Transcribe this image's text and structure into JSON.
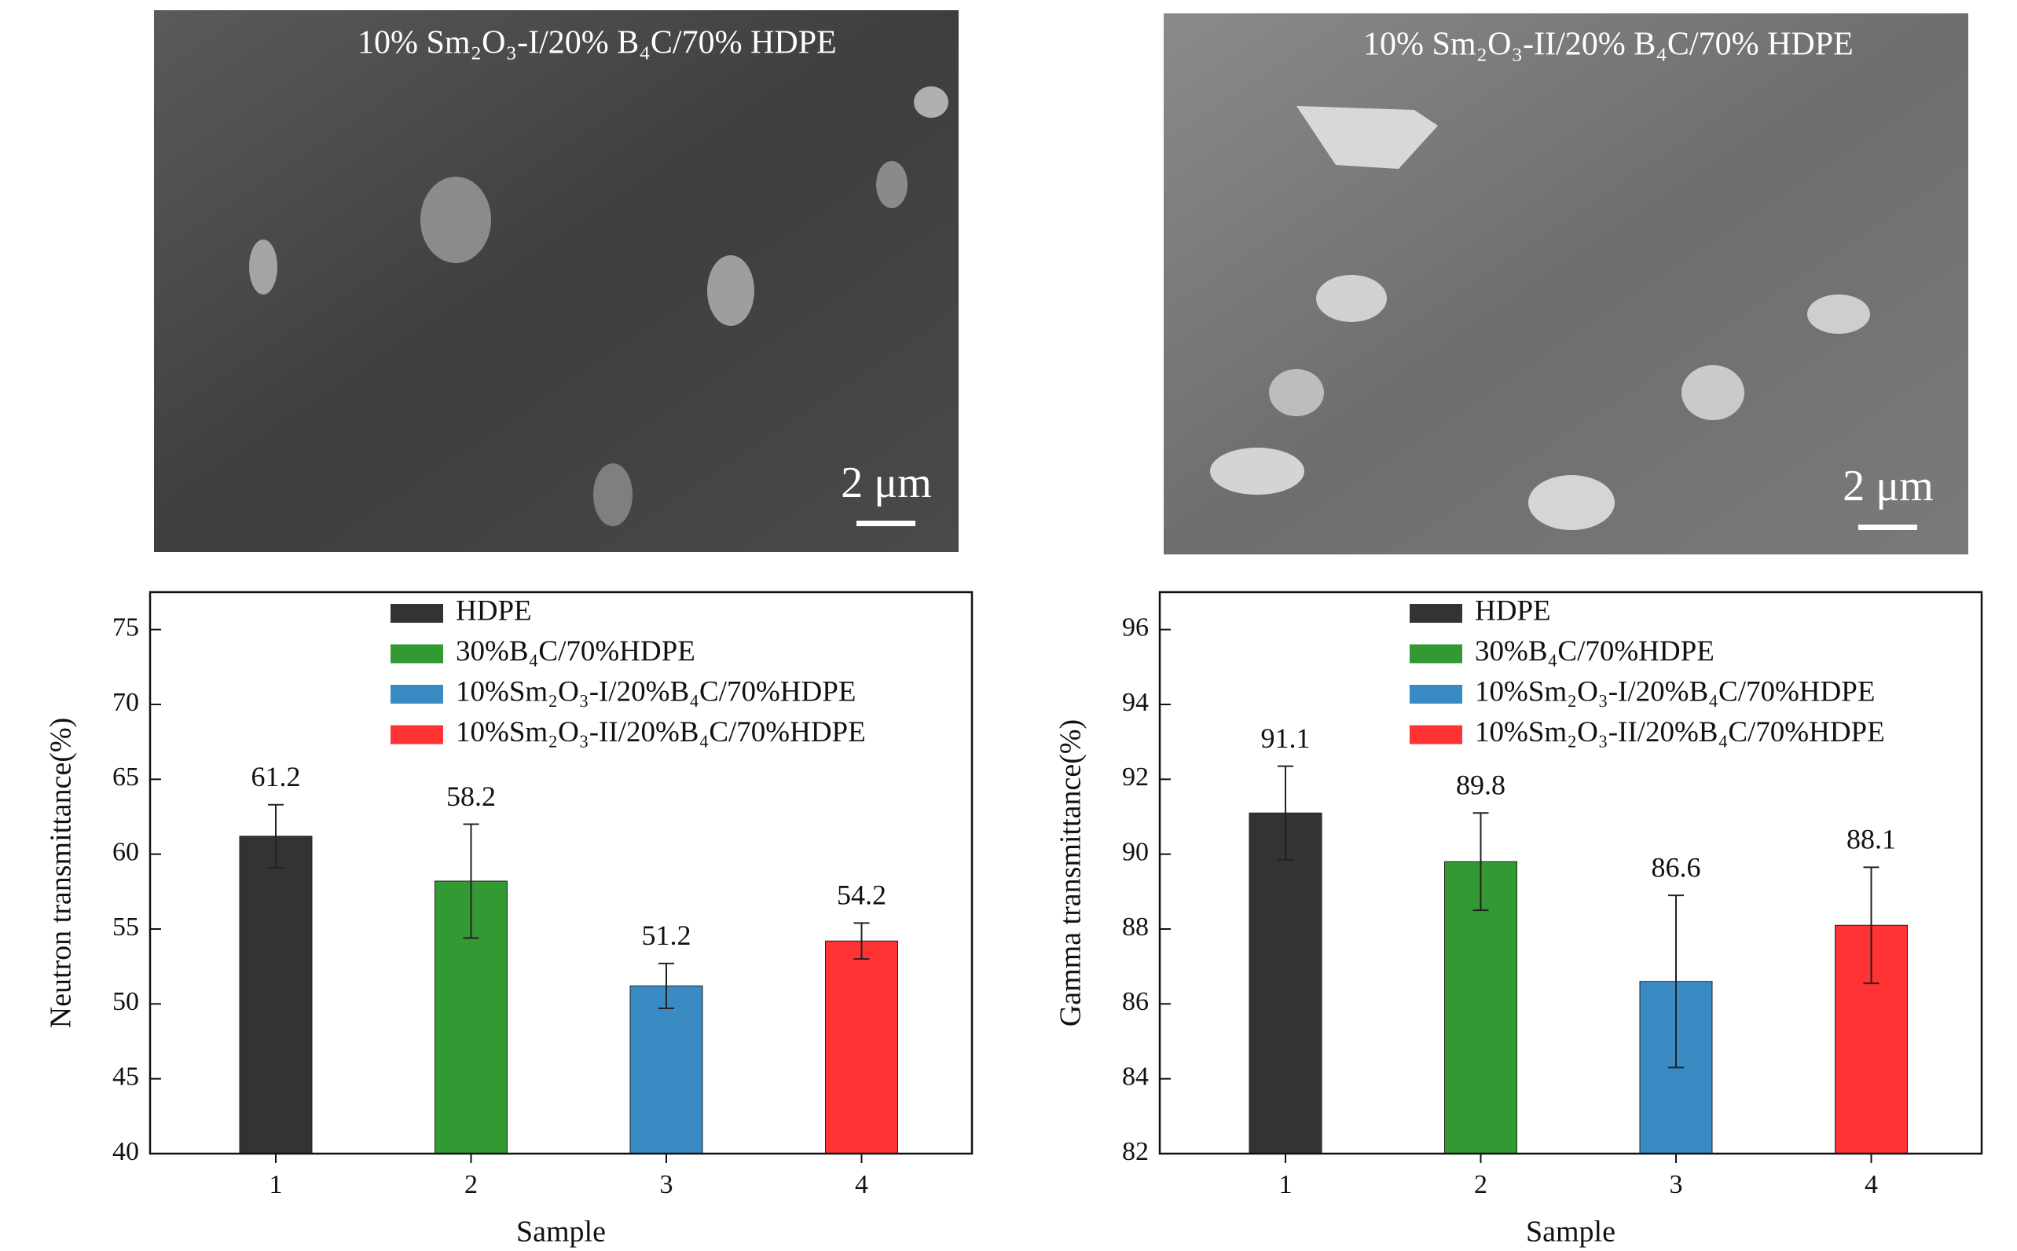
{
  "images": [
    {
      "caption": "10% Sm₂O₃-I/20% B₄C/70% HDPE",
      "scale_bar": "2 μm"
    },
    {
      "caption": "10% Sm₂O₃-II/20% B₄C/70% HDPE",
      "scale_bar": "2 μm"
    }
  ],
  "chart_data": [
    {
      "type": "bar",
      "y_label": "Neutron transmittance(%)",
      "x_label": "Sample",
      "categories": [
        "1",
        "2",
        "3",
        "4"
      ],
      "ylim": [
        40,
        77.5
      ],
      "yticks": [
        40,
        45,
        50,
        55,
        60,
        65,
        70,
        75
      ],
      "series": [
        {
          "name": "HDPE",
          "color": "#333333",
          "values": [
            61.2,
            null,
            null,
            null
          ],
          "errors": [
            2.1,
            null,
            null,
            null
          ]
        },
        {
          "name": "30%B₄C/70%HDPE",
          "color": "#339933",
          "values": [
            null,
            58.2,
            null,
            null
          ],
          "errors": [
            null,
            3.8,
            null,
            null
          ]
        },
        {
          "name": "10%Sm₂O₃-I/20%B₄C/70%HDPE",
          "color": "#3a8bc4",
          "values": [
            null,
            null,
            51.2,
            null
          ],
          "errors": [
            null,
            null,
            1.5,
            null
          ]
        },
        {
          "name": "10%Sm₂O₃-II/20%B₄C/70%HDPE",
          "color": "#ff3333",
          "values": [
            null,
            null,
            null,
            54.2
          ],
          "errors": [
            null,
            null,
            null,
            1.2
          ]
        }
      ]
    },
    {
      "type": "bar",
      "y_label": "Gamma transmittance(%)",
      "x_label": "Sample",
      "categories": [
        "1",
        "2",
        "3",
        "4"
      ],
      "ylim": [
        82,
        97
      ],
      "yticks": [
        82,
        84,
        86,
        88,
        90,
        92,
        94,
        96
      ],
      "series": [
        {
          "name": "HDPE",
          "color": "#333333",
          "values": [
            91.1,
            null,
            null,
            null
          ],
          "errors": [
            1.25,
            null,
            null,
            null
          ]
        },
        {
          "name": "30%B₄C/70%HDPE",
          "color": "#339933",
          "values": [
            null,
            89.8,
            null,
            null
          ],
          "errors": [
            null,
            1.3,
            null,
            null
          ]
        },
        {
          "name": "10%Sm₂O₃-I/20%B₄C/70%HDPE",
          "color": "#3a8bc4",
          "values": [
            null,
            null,
            86.6,
            null
          ],
          "errors": [
            null,
            null,
            2.3,
            null
          ]
        },
        {
          "name": "10%Sm₂O₃-II/20%B₄C/70%HDPE",
          "color": "#ff3333",
          "values": [
            null,
            null,
            null,
            88.1
          ],
          "errors": [
            null,
            null,
            null,
            1.55
          ]
        }
      ]
    }
  ]
}
